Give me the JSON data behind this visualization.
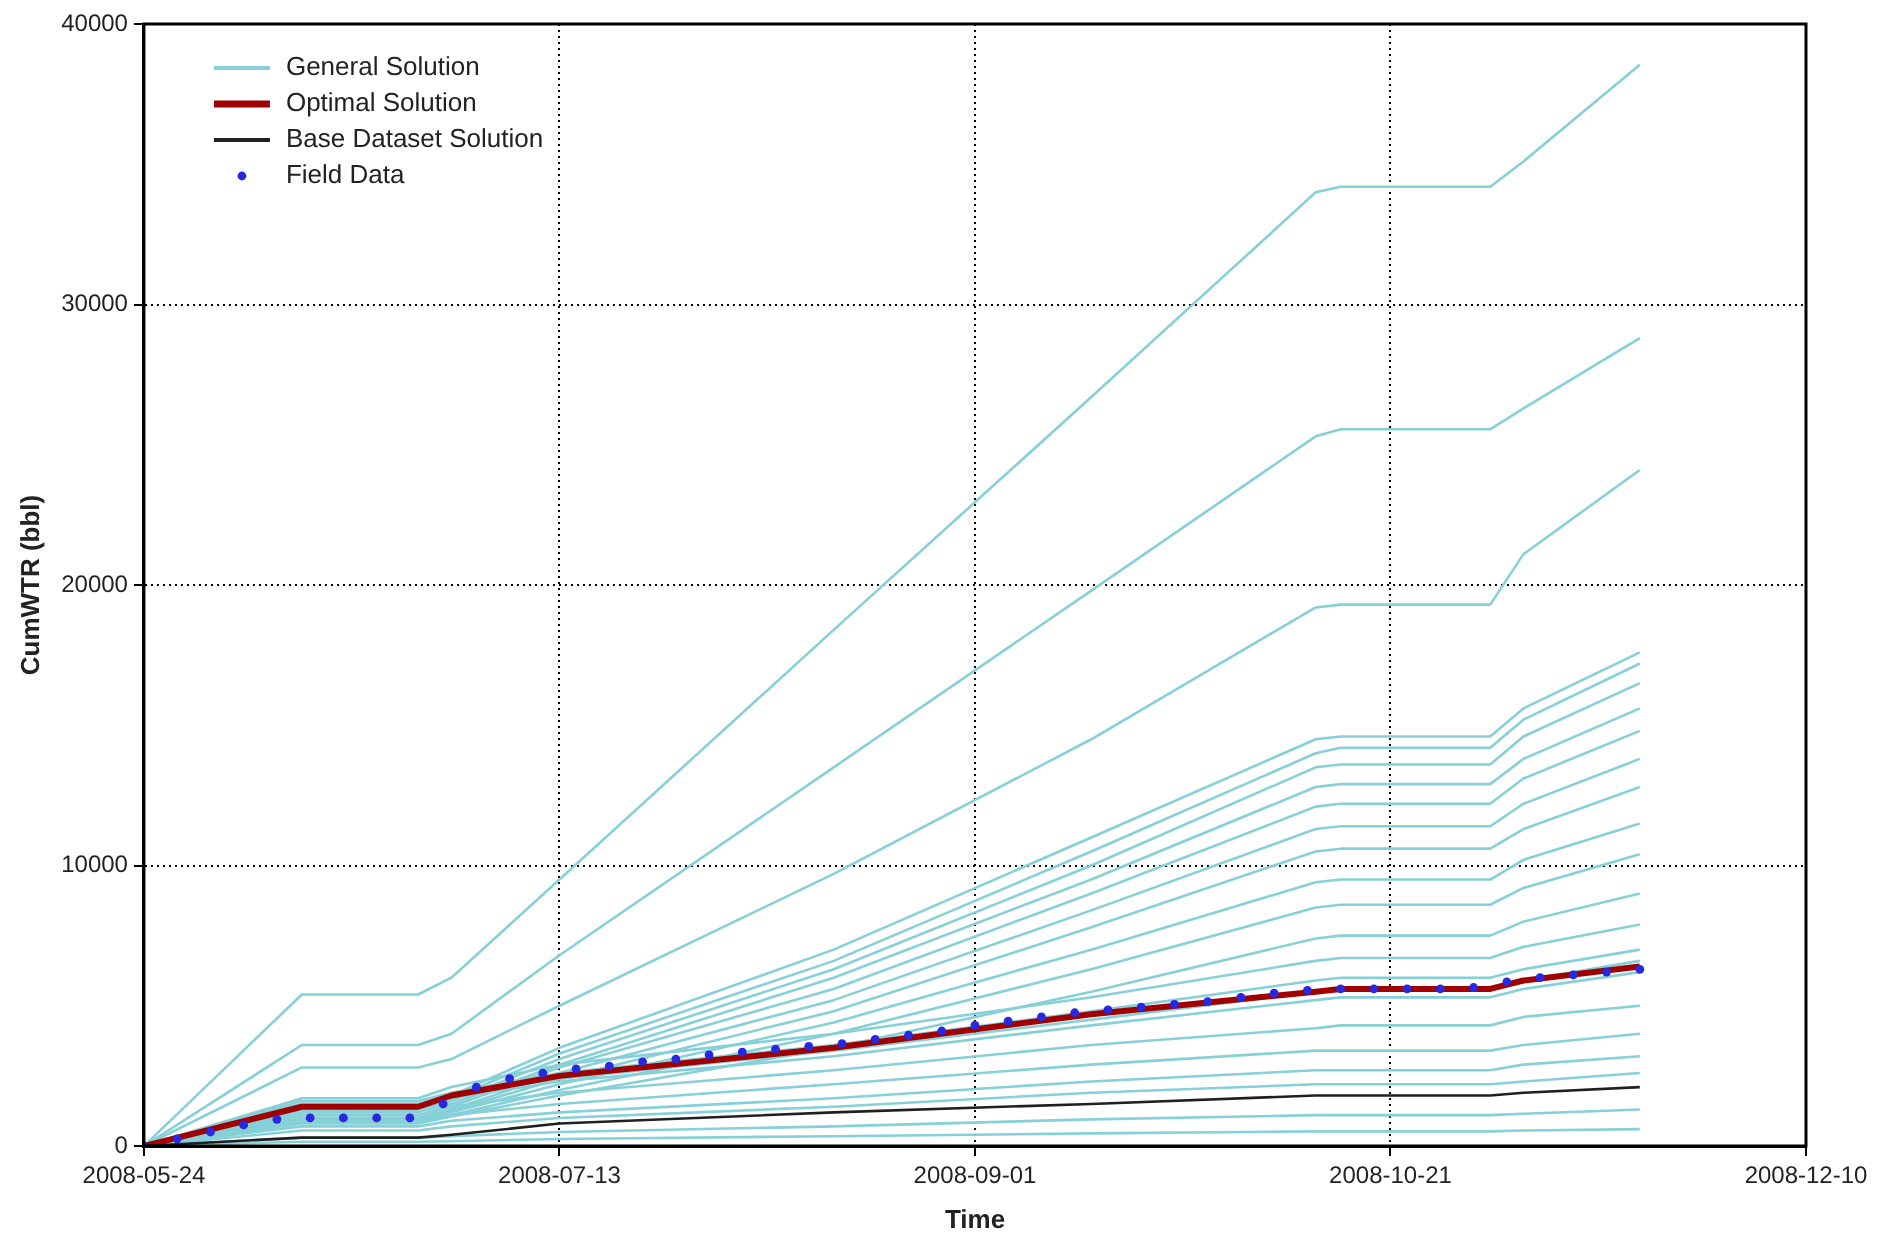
{
  "chart_data": {
    "type": "line",
    "xlabel": "Time",
    "ylabel": "CumWTR (bbl)",
    "xlim": [
      "2008-05-24",
      "2008-12-10"
    ],
    "xticks": [
      "2008-05-24",
      "2008-07-13",
      "2008-09-01",
      "2008-10-21",
      "2008-12-10"
    ],
    "ylim": [
      0,
      40000
    ],
    "yticks": [
      0,
      10000,
      20000,
      30000,
      40000
    ],
    "grid": true,
    "legend": "top left",
    "marker": "none",
    "line_style": "solid",
    "x": [
      "2008-05-24",
      "2008-06-12",
      "2008-06-26",
      "2008-06-30",
      "2008-07-13",
      "2008-08-15",
      "2008-09-15",
      "2008-10-12",
      "2008-10-15",
      "2008-11-02",
      "2008-11-06",
      "2008-11-20"
    ],
    "series": [
      {
        "name": "General Solution",
        "type": "line",
        "color": "#86d0d8",
        "values": [
          0,
          5400,
          5400,
          6000,
          9500,
          18400,
          26700,
          34000,
          34200,
          34200,
          35100,
          38550
        ]
      },
      {
        "type": "line",
        "color": "#86d0d8",
        "values": [
          0,
          3600,
          3600,
          4000,
          6800,
          13500,
          19800,
          25300,
          25550,
          25550,
          26300,
          28800
        ]
      },
      {
        "type": "line",
        "color": "#86d0d8",
        "values": [
          0,
          2800,
          2800,
          3100,
          5000,
          9700,
          14500,
          19200,
          19300,
          19300,
          21100,
          24100
        ]
      },
      {
        "type": "line",
        "color": "#86d0d8",
        "values": [
          0,
          1500,
          1500,
          1800,
          3500,
          7000,
          11000,
          14500,
          14600,
          14600,
          15600,
          17600
        ]
      },
      {
        "type": "line",
        "color": "#86d0d8",
        "values": [
          0,
          1400,
          1400,
          1700,
          3300,
          6600,
          10500,
          14000,
          14200,
          14200,
          15200,
          17200
        ]
      },
      {
        "type": "line",
        "color": "#86d0d8",
        "values": [
          0,
          1300,
          1300,
          1600,
          3100,
          6300,
          10000,
          13500,
          13600,
          13600,
          14600,
          16500
        ]
      },
      {
        "type": "line",
        "color": "#86d0d8",
        "values": [
          0,
          1200,
          1200,
          1500,
          2900,
          6000,
          9500,
          12800,
          12900,
          12900,
          13800,
          15600
        ]
      },
      {
        "type": "line",
        "color": "#86d0d8",
        "values": [
          0,
          1100,
          1100,
          1400,
          2800,
          5600,
          9000,
          12100,
          12200,
          12200,
          13100,
          14800
        ]
      },
      {
        "type": "line",
        "color": "#86d0d8",
        "values": [
          0,
          1000,
          1000,
          1300,
          2600,
          5200,
          8400,
          11300,
          11400,
          11400,
          12200,
          13800
        ]
      },
      {
        "type": "line",
        "color": "#86d0d8",
        "values": [
          0,
          950,
          950,
          1250,
          2400,
          4800,
          7800,
          10500,
          10600,
          10600,
          11300,
          12800
        ]
      },
      {
        "type": "line",
        "color": "#86d0d8",
        "values": [
          0,
          900,
          900,
          1200,
          2200,
          4400,
          7000,
          9400,
          9500,
          9500,
          10200,
          11500
        ]
      },
      {
        "type": "line",
        "color": "#86d0d8",
        "values": [
          0,
          850,
          850,
          1100,
          2000,
          4000,
          6300,
          8500,
          8600,
          8600,
          9200,
          10400
        ]
      },
      {
        "type": "line",
        "color": "#86d0d8",
        "values": [
          0,
          800,
          800,
          1050,
          1800,
          3500,
          5500,
          7400,
          7500,
          7500,
          8000,
          9000
        ]
      },
      {
        "type": "line",
        "color": "#86d0d8",
        "values": [
          0,
          1700,
          1700,
          2100,
          2900,
          4000,
          5300,
          6600,
          6700,
          6700,
          7100,
          7900
        ]
      },
      {
        "type": "line",
        "color": "#86d0d8",
        "values": [
          0,
          1600,
          1600,
          1900,
          2600,
          3600,
          4800,
          5900,
          6000,
          6000,
          6300,
          7000
        ]
      },
      {
        "type": "line",
        "color": "#86d0d8",
        "values": [
          0,
          1500,
          1500,
          1800,
          2400,
          3400,
          4500,
          5500,
          5600,
          5600,
          5900,
          6600
        ]
      },
      {
        "type": "line",
        "color": "#86d0d8",
        "values": [
          0,
          1300,
          1300,
          1700,
          2300,
          3200,
          4300,
          5200,
          5300,
          5300,
          5600,
          6200
        ]
      },
      {
        "type": "line",
        "color": "#86d0d8",
        "values": [
          0,
          1100,
          1100,
          1400,
          1900,
          2700,
          3600,
          4200,
          4300,
          4300,
          4600,
          5000
        ]
      },
      {
        "type": "line",
        "color": "#86d0d8",
        "values": [
          0,
          900,
          900,
          1100,
          1500,
          2200,
          2900,
          3400,
          3400,
          3400,
          3600,
          4000
        ]
      },
      {
        "type": "line",
        "color": "#86d0d8",
        "values": [
          0,
          700,
          700,
          900,
          1200,
          1700,
          2300,
          2700,
          2700,
          2700,
          2900,
          3200
        ]
      },
      {
        "type": "line",
        "color": "#86d0d8",
        "values": [
          0,
          550,
          550,
          700,
          1000,
          1400,
          1900,
          2200,
          2200,
          2200,
          2300,
          2600
        ]
      },
      {
        "type": "line",
        "color": "#86d0d8",
        "values": [
          0,
          300,
          300,
          350,
          500,
          700,
          950,
          1100,
          1100,
          1100,
          1150,
          1300
        ]
      },
      {
        "type": "line",
        "color": "#86d0d8",
        "values": [
          0,
          150,
          150,
          170,
          250,
          350,
          450,
          520,
          520,
          520,
          550,
          600
        ]
      },
      {
        "name": "Optimal Solution",
        "type": "line",
        "color": "#a00000",
        "values": [
          0,
          1400,
          1400,
          1800,
          2500,
          3500,
          4700,
          5500,
          5600,
          5600,
          5900,
          6400
        ]
      },
      {
        "name": "Base Dataset Solution",
        "type": "line",
        "color": "#202020",
        "values": [
          0,
          300,
          300,
          400,
          800,
          1200,
          1500,
          1800,
          1800,
          1800,
          1900,
          2100
        ]
      },
      {
        "name": "Field Data",
        "type": "scatter",
        "marker": "circle",
        "color": "#2828e0",
        "x": [
          "2008-05-24",
          "2008-05-28",
          "2008-06-01",
          "2008-06-05",
          "2008-06-09",
          "2008-06-13",
          "2008-06-17",
          "2008-06-21",
          "2008-06-25",
          "2008-06-29",
          "2008-07-03",
          "2008-07-07",
          "2008-07-11",
          "2008-07-15",
          "2008-07-19",
          "2008-07-23",
          "2008-07-27",
          "2008-07-31",
          "2008-08-04",
          "2008-08-08",
          "2008-08-12",
          "2008-08-16",
          "2008-08-20",
          "2008-08-24",
          "2008-08-28",
          "2008-09-01",
          "2008-09-05",
          "2008-09-09",
          "2008-09-13",
          "2008-09-17",
          "2008-09-21",
          "2008-09-25",
          "2008-09-29",
          "2008-10-03",
          "2008-10-07",
          "2008-10-11",
          "2008-10-15",
          "2008-10-19",
          "2008-10-23",
          "2008-10-27",
          "2008-10-31",
          "2008-11-04",
          "2008-11-08",
          "2008-11-12",
          "2008-11-16",
          "2008-11-20"
        ],
        "values": [
          0,
          250,
          500,
          750,
          950,
          1000,
          1000,
          1000,
          1000,
          1500,
          2100,
          2400,
          2600,
          2750,
          2850,
          3000,
          3100,
          3250,
          3350,
          3450,
          3550,
          3650,
          3800,
          3950,
          4100,
          4300,
          4450,
          4600,
          4750,
          4850,
          4950,
          5050,
          5150,
          5300,
          5450,
          5550,
          5600,
          5600,
          5600,
          5600,
          5650,
          5850,
          6000,
          6100,
          6200,
          6300
        ]
      }
    ]
  }
}
